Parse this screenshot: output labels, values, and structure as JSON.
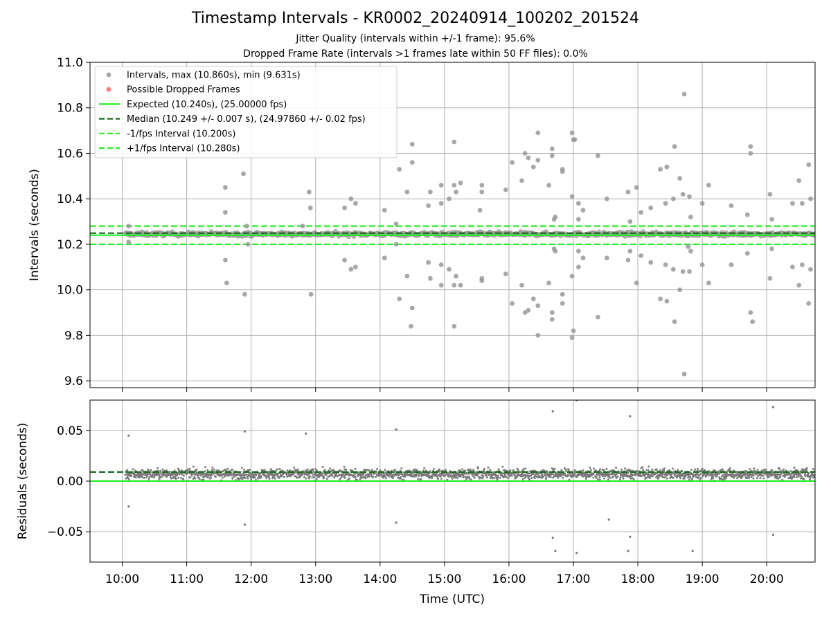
{
  "header": {
    "title": "Timestamp Intervals - KR0002_20240914_100202_201524",
    "subtitle1": "Jitter Quality (intervals within +/-1 frame): 95.6%",
    "subtitle2": "Dropped Frame Rate (intervals >1 frames late within 50 FF files): 0.0%"
  },
  "colors": {
    "points": "#999999",
    "residual_points": "#777777",
    "dropped": "#ff6666",
    "expected": "#22ee22",
    "median": "#166d16",
    "fps_band": "#22ee22",
    "grid": "#b0b0b0"
  },
  "chart_data": [
    {
      "type": "scatter",
      "ylabel": "Intervals (seconds)",
      "xlabel": "",
      "xlim_hours": [
        9.5,
        20.75
      ],
      "ylim": [
        9.57,
        11.0
      ],
      "yticks": [
        9.6,
        9.8,
        10.0,
        10.2,
        10.4,
        10.6,
        10.8,
        11.0
      ],
      "ytick_labels": [
        "9.6",
        "9.8",
        "10.0",
        "10.2",
        "10.4",
        "10.6",
        "10.8",
        "11.0"
      ],
      "grid": true,
      "legend_position": "top-left",
      "legend": [
        {
          "label": "Intervals, max (10.860s), min (9.631s)",
          "kind": "marker",
          "color": "#999999"
        },
        {
          "label": "Possible Dropped Frames",
          "kind": "marker",
          "color": "#ff6666"
        },
        {
          "label": "Expected (10.240s), (25.00000 fps)",
          "kind": "solid",
          "color": "#22ee22"
        },
        {
          "label": "Median (10.249 +/- 0.007 s), (24.97860 +/- 0.02 fps)",
          "kind": "dashed",
          "color": "#166d16"
        },
        {
          "label": "-1/fps Interval (10.200s)",
          "kind": "dashed",
          "color": "#22ee22"
        },
        {
          "label": "+1/fps Interval (10.280s)",
          "kind": "dashed",
          "color": "#22ee22"
        }
      ],
      "reference_lines": {
        "expected": 10.24,
        "median": 10.249,
        "minus_fps": 10.2,
        "plus_fps": 10.28
      },
      "series": [
        {
          "name": "Intervals, max (10.860s), min (9.631s)",
          "band": {
            "center": 10.245,
            "spread": 0.016,
            "x_start": 10.05,
            "x_end": 20.75,
            "count": 950
          },
          "outliers": [
            [
              10.1,
              10.28
            ],
            [
              10.1,
              10.21
            ],
            [
              11.6,
              10.45
            ],
            [
              11.6,
              10.34
            ],
            [
              11.6,
              10.13
            ],
            [
              11.62,
              10.03
            ],
            [
              11.88,
              10.51
            ],
            [
              11.9,
              9.98
            ],
            [
              11.93,
              10.28
            ],
            [
              11.95,
              10.2
            ],
            [
              12.8,
              10.28
            ],
            [
              12.9,
              10.43
            ],
            [
              12.92,
              10.36
            ],
            [
              12.93,
              9.98
            ],
            [
              13.45,
              10.36
            ],
            [
              13.45,
              10.13
            ],
            [
              13.55,
              10.4
            ],
            [
              13.55,
              10.09
            ],
            [
              13.62,
              10.38
            ],
            [
              13.62,
              10.1
            ],
            [
              14.07,
              10.35
            ],
            [
              14.07,
              10.14
            ],
            [
              14.25,
              10.29
            ],
            [
              14.25,
              10.2
            ],
            [
              14.3,
              10.53
            ],
            [
              14.3,
              9.96
            ],
            [
              14.42,
              10.43
            ],
            [
              14.42,
              10.06
            ],
            [
              14.5,
              10.64
            ],
            [
              14.5,
              10.56
            ],
            [
              14.5,
              9.92
            ],
            [
              14.48,
              9.84
            ],
            [
              14.75,
              10.37
            ],
            [
              14.75,
              10.12
            ],
            [
              14.78,
              10.43
            ],
            [
              14.78,
              10.05
            ],
            [
              14.95,
              10.46
            ],
            [
              14.95,
              10.38
            ],
            [
              14.95,
              10.11
            ],
            [
              14.95,
              10.02
            ],
            [
              15.07,
              10.4
            ],
            [
              15.07,
              10.09
            ],
            [
              15.15,
              10.65
            ],
            [
              15.15,
              10.46
            ],
            [
              15.18,
              10.43
            ],
            [
              15.18,
              10.06
            ],
            [
              15.25,
              10.47
            ],
            [
              15.25,
              10.02
            ],
            [
              15.15,
              10.02
            ],
            [
              15.15,
              9.84
            ],
            [
              15.55,
              10.35
            ],
            [
              15.58,
              10.46
            ],
            [
              15.58,
              10.43
            ],
            [
              15.58,
              10.05
            ],
            [
              15.58,
              10.04
            ],
            [
              15.95,
              10.44
            ],
            [
              15.95,
              10.07
            ],
            [
              16.05,
              10.56
            ],
            [
              16.05,
              9.94
            ],
            [
              16.2,
              10.48
            ],
            [
              16.2,
              10.02
            ],
            [
              16.25,
              10.6
            ],
            [
              16.25,
              9.9
            ],
            [
              16.3,
              10.58
            ],
            [
              16.3,
              9.91
            ],
            [
              16.38,
              10.54
            ],
            [
              16.38,
              9.96
            ],
            [
              16.45,
              10.69
            ],
            [
              16.45,
              10.57
            ],
            [
              16.45,
              9.93
            ],
            [
              16.45,
              9.8
            ],
            [
              16.62,
              10.46
            ],
            [
              16.62,
              10.03
            ],
            [
              16.67,
              10.62
            ],
            [
              16.67,
              10.59
            ],
            [
              16.67,
              9.9
            ],
            [
              16.67,
              9.87
            ],
            [
              16.7,
              10.31
            ],
            [
              16.72,
              10.32
            ],
            [
              16.7,
              10.18
            ],
            [
              16.72,
              10.17
            ],
            [
              16.83,
              10.53
            ],
            [
              16.83,
              10.52
            ],
            [
              16.83,
              9.98
            ],
            [
              16.83,
              9.94
            ],
            [
              16.98,
              10.69
            ],
            [
              16.98,
              10.41
            ],
            [
              16.98,
              10.06
            ],
            [
              17.0,
              10.66
            ],
            [
              17.02,
              10.66
            ],
            [
              17.0,
              9.82
            ],
            [
              16.98,
              9.79
            ],
            [
              17.08,
              10.38
            ],
            [
              17.08,
              10.1
            ],
            [
              17.08,
              10.17
            ],
            [
              17.08,
              10.31
            ],
            [
              17.15,
              10.35
            ],
            [
              17.15,
              10.14
            ],
            [
              17.38,
              10.59
            ],
            [
              17.38,
              9.88
            ],
            [
              17.52,
              10.4
            ],
            [
              17.52,
              10.14
            ],
            [
              17.85,
              10.43
            ],
            [
              17.85,
              10.13
            ],
            [
              17.88,
              10.3
            ],
            [
              17.88,
              10.17
            ],
            [
              17.98,
              10.45
            ],
            [
              17.98,
              10.03
            ],
            [
              18.05,
              10.34
            ],
            [
              18.05,
              10.15
            ],
            [
              18.2,
              10.36
            ],
            [
              18.2,
              10.12
            ],
            [
              18.35,
              10.53
            ],
            [
              18.35,
              9.96
            ],
            [
              18.43,
              10.38
            ],
            [
              18.43,
              10.11
            ],
            [
              18.45,
              10.54
            ],
            [
              18.45,
              9.95
            ],
            [
              18.55,
              10.4
            ],
            [
              18.55,
              10.09
            ],
            [
              18.57,
              10.63
            ],
            [
              18.57,
              9.86
            ],
            [
              18.65,
              10.49
            ],
            [
              18.65,
              10.0
            ],
            [
              18.72,
              10.86
            ],
            [
              18.72,
              9.63
            ],
            [
              18.7,
              10.42
            ],
            [
              18.7,
              10.08
            ],
            [
              18.8,
              10.41
            ],
            [
              18.8,
              10.08
            ],
            [
              18.82,
              10.32
            ],
            [
              18.82,
              10.17
            ],
            [
              18.78,
              10.19
            ],
            [
              19.0,
              10.38
            ],
            [
              19.0,
              10.11
            ],
            [
              19.1,
              10.46
            ],
            [
              19.1,
              10.03
            ],
            [
              19.45,
              10.37
            ],
            [
              19.45,
              10.11
            ],
            [
              19.7,
              10.33
            ],
            [
              19.7,
              10.16
            ],
            [
              19.75,
              10.63
            ],
            [
              19.75,
              10.6
            ],
            [
              19.75,
              9.9
            ],
            [
              19.78,
              9.86
            ],
            [
              20.05,
              10.42
            ],
            [
              20.05,
              10.05
            ],
            [
              20.08,
              10.31
            ],
            [
              20.08,
              10.18
            ],
            [
              20.4,
              10.38
            ],
            [
              20.4,
              10.1
            ],
            [
              20.5,
              10.48
            ],
            [
              20.5,
              10.02
            ],
            [
              20.55,
              10.38
            ],
            [
              20.55,
              10.11
            ],
            [
              20.65,
              10.55
            ],
            [
              20.65,
              9.94
            ],
            [
              20.68,
              10.4
            ],
            [
              20.68,
              10.09
            ]
          ]
        }
      ]
    },
    {
      "type": "scatter",
      "ylabel": "Residuals (seconds)",
      "xlabel": "Time (UTC)",
      "xlim_hours": [
        9.5,
        20.75
      ],
      "ylim": [
        -0.08,
        0.08
      ],
      "yticks": [
        -0.05,
        0.0,
        0.05
      ],
      "ytick_labels": [
        "−0.05",
        "0.00",
        "0.05"
      ],
      "xtick_hours": [
        10,
        11,
        12,
        13,
        14,
        15,
        16,
        17,
        18,
        19,
        20
      ],
      "xtick_labels": [
        "10:00",
        "11:00",
        "12:00",
        "13:00",
        "14:00",
        "15:00",
        "16:00",
        "17:00",
        "18:00",
        "19:00",
        "20:00"
      ],
      "grid": true,
      "reference_lines": {
        "zero": 0.0,
        "median_offset": 0.009
      },
      "series": [
        {
          "name": "Residuals",
          "band": {
            "center": 0.007,
            "spread": 0.009,
            "x_start": 10.05,
            "x_end": 20.75,
            "count": 2200
          },
          "outliers": [
            [
              10.1,
              0.045
            ],
            [
              10.1,
              -0.025
            ],
            [
              11.9,
              0.049
            ],
            [
              11.9,
              -0.043
            ],
            [
              12.85,
              0.047
            ],
            [
              14.25,
              0.051
            ],
            [
              14.25,
              -0.041
            ],
            [
              16.68,
              0.069
            ],
            [
              16.68,
              -0.056
            ],
            [
              16.72,
              -0.069
            ],
            [
              17.05,
              0.08
            ],
            [
              17.05,
              -0.071
            ],
            [
              17.55,
              -0.038
            ],
            [
              17.88,
              0.064
            ],
            [
              17.88,
              -0.055
            ],
            [
              17.85,
              -0.069
            ],
            [
              18.85,
              -0.069
            ],
            [
              20.1,
              0.073
            ],
            [
              20.1,
              -0.053
            ]
          ]
        }
      ]
    }
  ]
}
